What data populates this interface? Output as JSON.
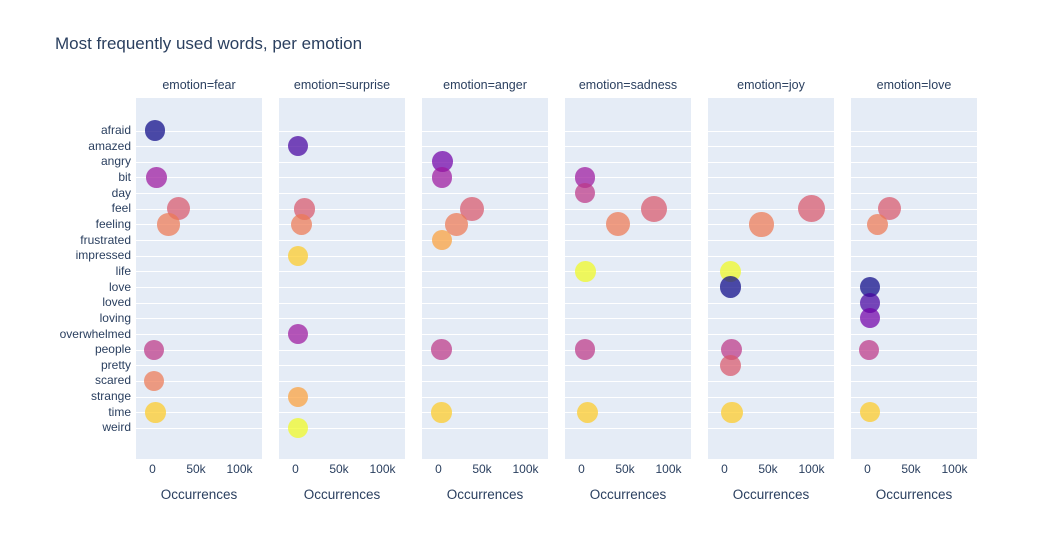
{
  "chart_data": {
    "type": "scatter",
    "title": "Most frequently used words, per emotion",
    "xlabel": "Occurrences",
    "xlim": [
      0,
      125000
    ],
    "x_ticks": [
      {
        "value": 0,
        "label": "0"
      },
      {
        "value": 50000,
        "label": "50k"
      },
      {
        "value": 100000,
        "label": "100k"
      }
    ],
    "grid": "horizontal-white-on-lightblue",
    "legend_position": "none",
    "categories": [
      "afraid",
      "amazed",
      "angry",
      "bit",
      "day",
      "feel",
      "feeling",
      "frustrated",
      "impressed",
      "life",
      "love",
      "loved",
      "loving",
      "overwhelmed",
      "people",
      "pretty",
      "scared",
      "strange",
      "time",
      "weird"
    ],
    "facets": [
      {
        "name": "fear",
        "label": "emotion=fear",
        "points": [
          {
            "word": "afraid",
            "value": 2500
          },
          {
            "word": "bit",
            "value": 4500
          },
          {
            "word": "feel",
            "value": 30000
          },
          {
            "word": "feeling",
            "value": 18500
          },
          {
            "word": "people",
            "value": 1500
          },
          {
            "word": "scared",
            "value": 2000
          },
          {
            "word": "time",
            "value": 3500
          }
        ]
      },
      {
        "name": "surprise",
        "label": "emotion=surprise",
        "points": [
          {
            "word": "amazed",
            "value": 2500
          },
          {
            "word": "feel",
            "value": 10500
          },
          {
            "word": "feeling",
            "value": 7000
          },
          {
            "word": "impressed",
            "value": 3000
          },
          {
            "word": "overwhelmed",
            "value": 2500
          },
          {
            "word": "strange",
            "value": 2500
          },
          {
            "word": "weird",
            "value": 2500
          }
        ]
      },
      {
        "name": "anger",
        "label": "emotion=anger",
        "points": [
          {
            "word": "angry",
            "value": 4500
          },
          {
            "word": "bit",
            "value": 4000
          },
          {
            "word": "feel",
            "value": 39000
          },
          {
            "word": "feeling",
            "value": 21000
          },
          {
            "word": "frustrated",
            "value": 4000
          },
          {
            "word": "people",
            "value": 3500
          },
          {
            "word": "time",
            "value": 3500
          }
        ]
      },
      {
        "name": "sadness",
        "label": "emotion=sadness",
        "points": [
          {
            "word": "bit",
            "value": 4000
          },
          {
            "word": "day",
            "value": 4000
          },
          {
            "word": "feel",
            "value": 83000
          },
          {
            "word": "feeling",
            "value": 41500
          },
          {
            "word": "life",
            "value": 4500
          },
          {
            "word": "people",
            "value": 4000
          },
          {
            "word": "time",
            "value": 7000
          }
        ]
      },
      {
        "name": "joy",
        "label": "emotion=joy",
        "points": [
          {
            "word": "feel",
            "value": 100000
          },
          {
            "word": "feeling",
            "value": 42500
          },
          {
            "word": "life",
            "value": 7000
          },
          {
            "word": "love",
            "value": 7000
          },
          {
            "word": "people",
            "value": 8000
          },
          {
            "word": "pretty",
            "value": 7000
          },
          {
            "word": "time",
            "value": 8500
          }
        ]
      },
      {
        "name": "love",
        "label": "emotion=love",
        "points": [
          {
            "word": "feel",
            "value": 25500
          },
          {
            "word": "feeling",
            "value": 11500
          },
          {
            "word": "love",
            "value": 2500
          },
          {
            "word": "loved",
            "value": 2500
          },
          {
            "word": "loving",
            "value": 2500
          },
          {
            "word": "people",
            "value": 1500
          },
          {
            "word": "time",
            "value": 2500
          }
        ]
      }
    ],
    "colors": {
      "palette_name": "plasma-10",
      "palette": [
        "#0d0887",
        "#46039f",
        "#7201a8",
        "#9c179e",
        "#bd3786",
        "#d8576b",
        "#ed7953",
        "#fb9f3a",
        "#fdca26",
        "#f0f921"
      ],
      "marker_opacity": 0.72,
      "plot_background": "#e5ecf6",
      "grid_color": "#ffffff",
      "text_color": "#2a3f5f"
    }
  }
}
